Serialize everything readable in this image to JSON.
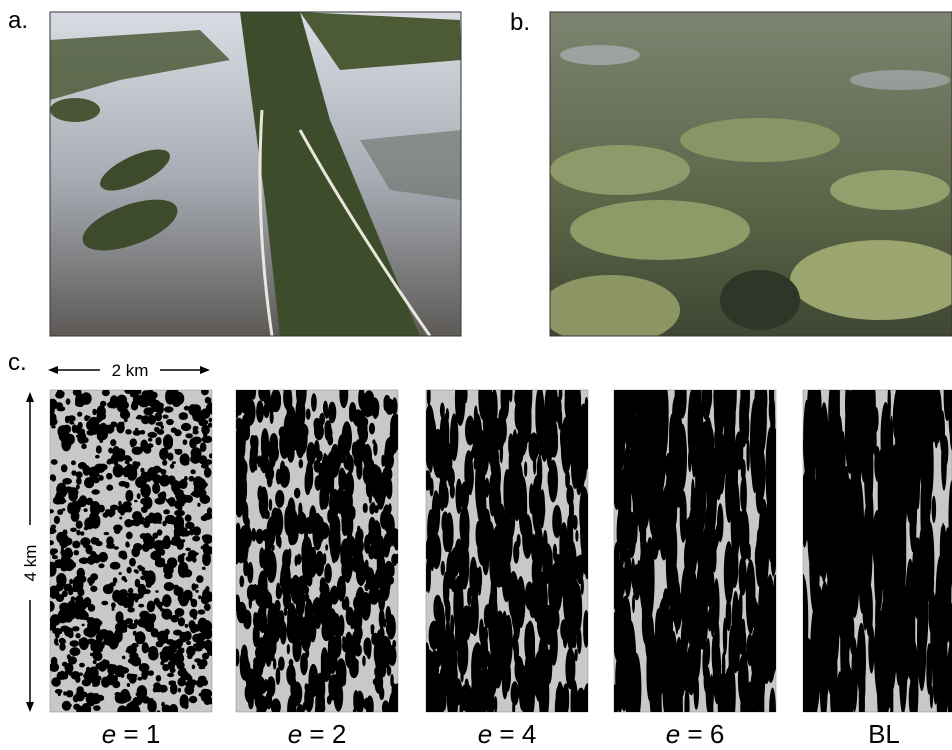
{
  "labels": {
    "a": "a.",
    "b": "b.",
    "c": "c."
  },
  "scale": {
    "horizontal": "2 km",
    "vertical": "4 km"
  },
  "panels": [
    {
      "variable": "e",
      "rest": "= 1"
    },
    {
      "variable": "e",
      "rest": "= 2"
    },
    {
      "variable": "e",
      "rest": "= 4"
    },
    {
      "variable": "e",
      "rest": "= 6"
    },
    {
      "variable": "",
      "rest": "BL"
    }
  ]
}
